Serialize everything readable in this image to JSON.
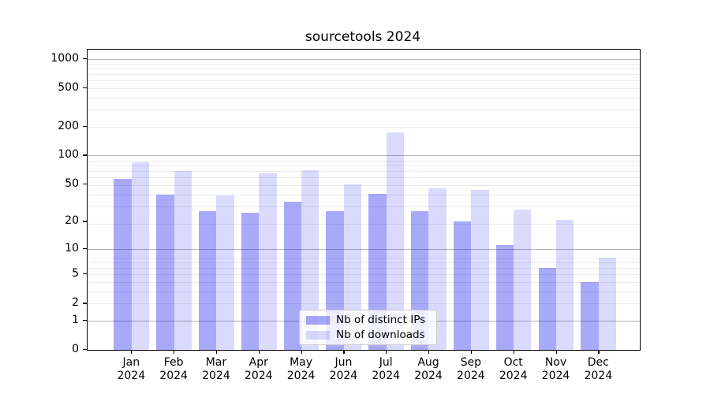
{
  "chart_data": {
    "type": "bar",
    "title": "sourcetools 2024",
    "categories": [
      "Jan",
      "Feb",
      "Mar",
      "Apr",
      "May",
      "Jun",
      "Jul",
      "Aug",
      "Sep",
      "Oct",
      "Nov",
      "Dec"
    ],
    "x_tick_year": "2024",
    "series": [
      {
        "name": "Nb of distinct IPs",
        "base_color": "#0a0af0",
        "alpha": 0.35,
        "values": [
          57,
          39,
          26,
          25,
          33,
          26,
          40,
          26,
          20,
          11,
          6,
          4
        ]
      },
      {
        "name": "Nb of downloads",
        "base_color": "#0a0af0",
        "alpha": 0.15,
        "values": [
          85,
          69,
          38,
          65,
          71,
          50,
          175,
          45,
          44,
          27,
          21,
          8
        ]
      }
    ],
    "y_ticks": [
      0,
      1,
      2,
      5,
      10,
      20,
      50,
      100,
      200,
      500,
      1000
    ],
    "y_scale": "log10(1+value)",
    "ylim": [
      0,
      1250
    ],
    "grid": "horizontal",
    "major_grid_values": [
      1,
      10,
      100,
      1000
    ],
    "minor_grid_shifted_values": [
      3,
      4,
      5,
      6,
      7,
      8,
      9,
      20,
      30,
      40,
      50,
      60,
      70,
      80,
      90,
      200,
      300,
      400,
      500,
      600,
      700,
      800,
      900
    ],
    "legend_position": "lower-center",
    "colors": {
      "axis": "#000000",
      "major_grid": "#b4b4b4",
      "minor_grid": "#ebebeb",
      "background": "#ffffff",
      "text": "#000000"
    }
  }
}
